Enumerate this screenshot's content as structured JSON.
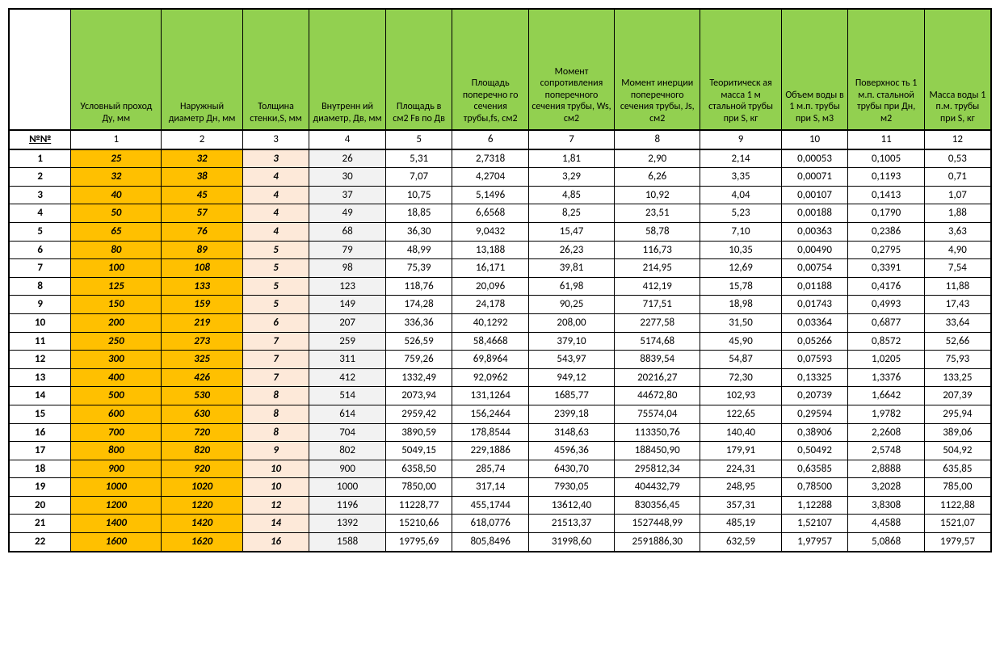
{
  "table": {
    "type": "table",
    "background_color": "#ffffff",
    "border_color": "#000000",
    "header_bg": "#92d050",
    "orange_bg": "#ffc000",
    "pink_bg": "#fde9d9",
    "gray_bg": "#f2f2f2",
    "font_family": "Calibri",
    "header_fontsize": 12,
    "body_fontsize": 13,
    "col_widths_pct": [
      6.5,
      9.5,
      8.5,
      7.0,
      8.0,
      7.0,
      8.0,
      9.0,
      9.0,
      8.5,
      7.0,
      8.0,
      7.0
    ],
    "columns": [
      "",
      "Условный проход Ду, мм",
      "Наружный диаметр Дн, мм",
      "Толщина стенки,S, мм",
      "Внутренн ий диаметр, Дв, мм",
      "Площадь в см2 Fв по Дв",
      "Площадь поперечно го сечения трубы,fs, см2",
      "Момент сопротивления поперечного сечения трубы, Ws, см2",
      "Момент инерции поперечного сечения трубы, Js, см2",
      "Теоритическ ая масса 1 м стальной трубы при S, кг",
      "Объем воды в 1 м.п. трубы при S, м3",
      "Поверхнос ть 1 м.п. стальной трубы при Дн, м2",
      "Масса воды 1 п.м. трубы при S, кг"
    ],
    "number_row": [
      "№№",
      "1",
      "2",
      "3",
      "4",
      "5",
      "6",
      "7",
      "8",
      "9",
      "10",
      "11",
      "12"
    ],
    "col_styles": [
      "plain",
      "orange",
      "orange",
      "pink",
      "gray",
      "plain",
      "plain",
      "plain",
      "plain",
      "plain",
      "plain",
      "plain",
      "plain"
    ],
    "rows": [
      [
        "1",
        "25",
        "32",
        "3",
        "26",
        "5,31",
        "2,7318",
        "1,81",
        "2,90",
        "2,14",
        "0,00053",
        "0,1005",
        "0,53"
      ],
      [
        "2",
        "32",
        "38",
        "4",
        "30",
        "7,07",
        "4,2704",
        "3,29",
        "6,26",
        "3,35",
        "0,00071",
        "0,1193",
        "0,71"
      ],
      [
        "3",
        "40",
        "45",
        "4",
        "37",
        "10,75",
        "5,1496",
        "4,85",
        "10,92",
        "4,04",
        "0,00107",
        "0,1413",
        "1,07"
      ],
      [
        "4",
        "50",
        "57",
        "4",
        "49",
        "18,85",
        "6,6568",
        "8,25",
        "23,51",
        "5,23",
        "0,00188",
        "0,1790",
        "1,88"
      ],
      [
        "5",
        "65",
        "76",
        "4",
        "68",
        "36,30",
        "9,0432",
        "15,47",
        "58,78",
        "7,10",
        "0,00363",
        "0,2386",
        "3,63"
      ],
      [
        "6",
        "80",
        "89",
        "5",
        "79",
        "48,99",
        "13,188",
        "26,23",
        "116,73",
        "10,35",
        "0,00490",
        "0,2795",
        "4,90"
      ],
      [
        "7",
        "100",
        "108",
        "5",
        "98",
        "75,39",
        "16,171",
        "39,81",
        "214,95",
        "12,69",
        "0,00754",
        "0,3391",
        "7,54"
      ],
      [
        "8",
        "125",
        "133",
        "5",
        "123",
        "118,76",
        "20,096",
        "61,98",
        "412,19",
        "15,78",
        "0,01188",
        "0,4176",
        "11,88"
      ],
      [
        "9",
        "150",
        "159",
        "5",
        "149",
        "174,28",
        "24,178",
        "90,25",
        "717,51",
        "18,98",
        "0,01743",
        "0,4993",
        "17,43"
      ],
      [
        "10",
        "200",
        "219",
        "6",
        "207",
        "336,36",
        "40,1292",
        "208,00",
        "2277,58",
        "31,50",
        "0,03364",
        "0,6877",
        "33,64"
      ],
      [
        "11",
        "250",
        "273",
        "7",
        "259",
        "526,59",
        "58,4668",
        "379,10",
        "5174,68",
        "45,90",
        "0,05266",
        "0,8572",
        "52,66"
      ],
      [
        "12",
        "300",
        "325",
        "7",
        "311",
        "759,26",
        "69,8964",
        "543,97",
        "8839,54",
        "54,87",
        "0,07593",
        "1,0205",
        "75,93"
      ],
      [
        "13",
        "400",
        "426",
        "7",
        "412",
        "1332,49",
        "92,0962",
        "949,12",
        "20216,27",
        "72,30",
        "0,13325",
        "1,3376",
        "133,25"
      ],
      [
        "14",
        "500",
        "530",
        "8",
        "514",
        "2073,94",
        "131,1264",
        "1685,77",
        "44672,80",
        "102,93",
        "0,20739",
        "1,6642",
        "207,39"
      ],
      [
        "15",
        "600",
        "630",
        "8",
        "614",
        "2959,42",
        "156,2464",
        "2399,18",
        "75574,04",
        "122,65",
        "0,29594",
        "1,9782",
        "295,94"
      ],
      [
        "16",
        "700",
        "720",
        "8",
        "704",
        "3890,59",
        "178,8544",
        "3148,63",
        "113350,76",
        "140,40",
        "0,38906",
        "2,2608",
        "389,06"
      ],
      [
        "17",
        "800",
        "820",
        "9",
        "802",
        "5049,15",
        "229,1886",
        "4596,36",
        "188450,90",
        "179,91",
        "0,50492",
        "2,5748",
        "504,92"
      ],
      [
        "18",
        "900",
        "920",
        "10",
        "900",
        "6358,50",
        "285,74",
        "6430,70",
        "295812,34",
        "224,31",
        "0,63585",
        "2,8888",
        "635,85"
      ],
      [
        "19",
        "1000",
        "1020",
        "10",
        "1000",
        "7850,00",
        "317,14",
        "7930,05",
        "404432,79",
        "248,95",
        "0,78500",
        "3,2028",
        "785,00"
      ],
      [
        "20",
        "1200",
        "1220",
        "12",
        "1196",
        "11228,77",
        "455,1744",
        "13612,40",
        "830356,45",
        "357,31",
        "1,12288",
        "3,8308",
        "1122,88"
      ],
      [
        "21",
        "1400",
        "1420",
        "14",
        "1392",
        "15210,66",
        "618,0776",
        "21513,37",
        "1527448,99",
        "485,19",
        "1,52107",
        "4,4588",
        "1521,07"
      ],
      [
        "22",
        "1600",
        "1620",
        "16",
        "1588",
        "19795,69",
        "805,8496",
        "31998,60",
        "2591886,30",
        "632,59",
        "1,97957",
        "5,0868",
        "1979,57"
      ]
    ]
  }
}
